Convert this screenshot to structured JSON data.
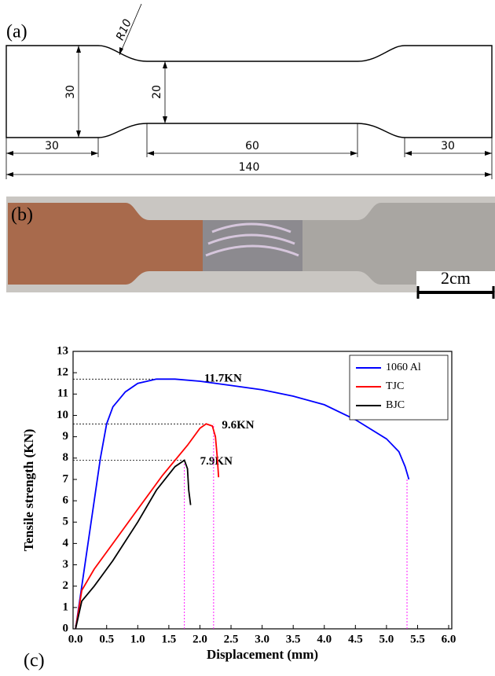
{
  "diagram": {
    "label": "(a)",
    "radius": "R10",
    "grip_height": "30",
    "gauge_width": "20",
    "grip_length_left": "30",
    "gauge_length": "60",
    "grip_length_right": "30",
    "total_length": "140"
  },
  "photo": {
    "label": "(b)",
    "scale_bar": "2cm"
  },
  "chart_data": {
    "type": "line",
    "panel_label": "(c)",
    "xlabel": "Displacement (mm)",
    "ylabel": "Tensile strength (KN)",
    "xlim": [
      -0.04,
      6.05
    ],
    "ylim": [
      0,
      13
    ],
    "xticks": [
      {
        "value": 0,
        "label": "0.0"
      },
      0.5,
      {
        "value": 1,
        "label": "1.0"
      },
      1.5,
      {
        "value": 2,
        "label": "2.0"
      },
      2.5,
      {
        "value": 3,
        "label": "3.0"
      },
      3.5,
      {
        "value": 4,
        "label": "4.0"
      },
      4.5,
      {
        "value": 5,
        "label": "5.0"
      },
      5.5,
      {
        "value": 6,
        "label": "6.0"
      }
    ],
    "yticks": [
      0,
      1,
      2,
      3,
      4,
      5,
      6,
      7,
      8,
      9,
      10,
      11,
      12,
      13
    ],
    "legend": "top-right",
    "series": [
      {
        "name": "1060 Al",
        "color": "#0000ff",
        "x": [
          0,
          0.1,
          0.2,
          0.3,
          0.4,
          0.5,
          0.6,
          0.8,
          1.0,
          1.3,
          1.6,
          2.0,
          2.5,
          3.0,
          3.5,
          4.0,
          4.5,
          5.0,
          5.2,
          5.3,
          5.36
        ],
        "values": [
          0,
          2,
          4,
          6,
          8,
          9.6,
          10.4,
          11.1,
          11.5,
          11.7,
          11.7,
          11.6,
          11.4,
          11.2,
          10.9,
          10.5,
          9.8,
          8.9,
          8.3,
          7.6,
          7.0
        ]
      },
      {
        "name": "TJC",
        "color": "#ff0000",
        "x": [
          0,
          0.1,
          0.3,
          0.6,
          1.0,
          1.4,
          1.8,
          2.0,
          2.1,
          2.2,
          2.25,
          2.28,
          2.3
        ],
        "values": [
          0,
          1.8,
          2.8,
          4.0,
          5.6,
          7.2,
          8.6,
          9.4,
          9.6,
          9.5,
          9.0,
          8.0,
          7.1
        ]
      },
      {
        "name": "BJC",
        "color": "#000000",
        "x": [
          0,
          0.1,
          0.3,
          0.6,
          1.0,
          1.3,
          1.6,
          1.75,
          1.8,
          1.82,
          1.85
        ],
        "values": [
          0,
          1.3,
          2.0,
          3.2,
          5.0,
          6.5,
          7.6,
          7.9,
          7.5,
          6.5,
          5.8
        ]
      }
    ],
    "annotations": [
      {
        "text": "11.7KN",
        "y": 11.7,
        "x": 1.5
      },
      {
        "text": "9.6KN",
        "y": 9.6,
        "x": 2.1
      },
      {
        "text": "7.9KN",
        "y": 7.9,
        "x": 1.75
      }
    ],
    "fracture_x": [
      1.75,
      2.22,
      5.33
    ]
  }
}
